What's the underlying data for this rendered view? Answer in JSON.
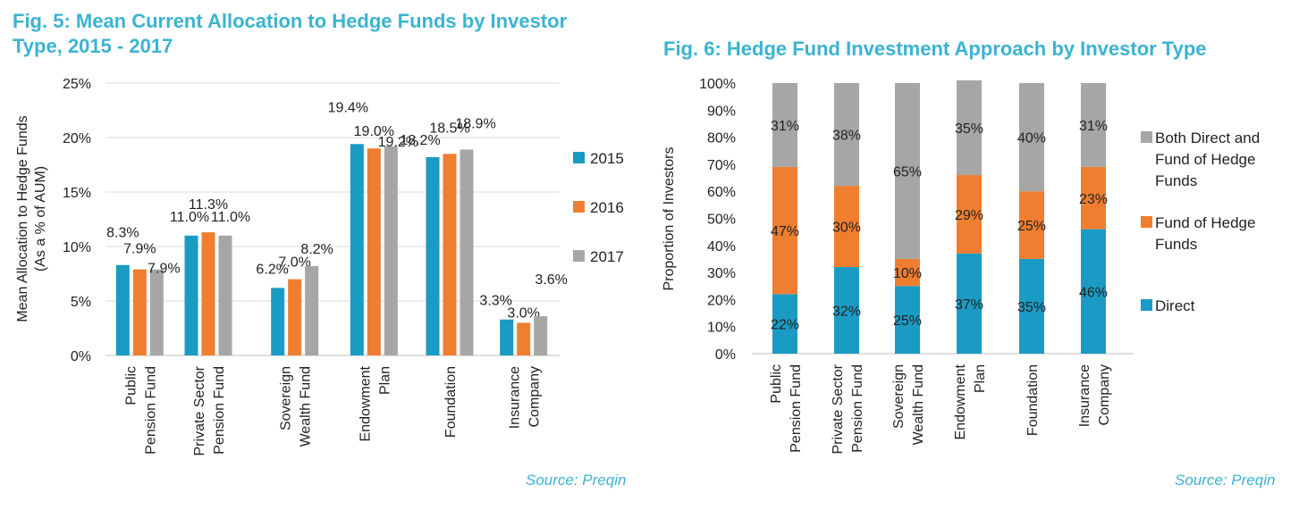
{
  "colors": {
    "title": "#3bb3d2",
    "source": "#3bb3d2",
    "c2015": "#1a9bc4",
    "c2016": "#ef7e30",
    "c2017": "#a6a6a6",
    "grid": "#d9d9d9",
    "axis": "#bfbfbf"
  },
  "fig5": {
    "title": "Fig. 5: Mean Current Allocation to Hedge Funds by Investor Type, 2015 - 2017",
    "source": "Source: Preqin"
  },
  "fig6": {
    "title": "Fig. 6: Hedge Fund Investment Approach by Investor Type",
    "source": "Source: Preqin"
  },
  "chart_data": [
    {
      "type": "bar",
      "title": "Fig. 5: Mean Current Allocation to Hedge Funds by Investor Type, 2015 - 2017",
      "ylabel": "Mean Allocation to Hedge Funds (As a % of AUM)",
      "ylabel_lines": [
        "Mean Allocation to Hedge Funds",
        "(As a % of AUM)"
      ],
      "xlabel": "",
      "ylim": [
        0,
        25
      ],
      "yticks": [
        0,
        5,
        10,
        15,
        20,
        25
      ],
      "ytick_labels": [
        "0%",
        "5%",
        "10%",
        "15%",
        "20%",
        "25%"
      ],
      "grid": true,
      "legend_position": "right",
      "categories": [
        [
          "Public",
          "Pension Fund"
        ],
        [
          "Private Sector",
          "Pension Fund"
        ],
        [
          "Sovereign",
          "Wealth Fund"
        ],
        [
          "Endowment",
          "Plan"
        ],
        [
          "Foundation"
        ],
        [
          "Insurance",
          "Company"
        ]
      ],
      "series": [
        {
          "name": "2015",
          "values": [
            8.3,
            11.0,
            6.2,
            19.4,
            18.2,
            3.3
          ],
          "labels": [
            "8.3%",
            "11.0%",
            "6.2%",
            "19.4%",
            "18.2%",
            "3.3%"
          ]
        },
        {
          "name": "2016",
          "values": [
            7.9,
            11.3,
            7.0,
            19.0,
            18.5,
            3.0
          ],
          "labels": [
            "7.9%",
            "11.3%",
            "7.0%",
            "19.0%",
            "18.5%",
            "3.0%"
          ]
        },
        {
          "name": "2017",
          "values": [
            7.9,
            11.0,
            8.2,
            19.2,
            18.9,
            3.6
          ],
          "labels": [
            "7.9%",
            "11.0%",
            "8.2%",
            "19.2%",
            "18.9%",
            "3.6%"
          ]
        }
      ]
    },
    {
      "type": "bar",
      "stacked": true,
      "title": "Fig. 6: Hedge Fund Investment Approach by Investor Type",
      "ylabel": "Proportion of Investors",
      "xlabel": "",
      "ylim": [
        0,
        100
      ],
      "yticks": [
        0,
        10,
        20,
        30,
        40,
        50,
        60,
        70,
        80,
        90,
        100
      ],
      "ytick_labels": [
        "0%",
        "10%",
        "20%",
        "30%",
        "40%",
        "50%",
        "60%",
        "70%",
        "80%",
        "90%",
        "100%"
      ],
      "grid": false,
      "legend_position": "right",
      "categories": [
        [
          "Public",
          "Pension Fund"
        ],
        [
          "Private Sector",
          "Pension Fund"
        ],
        [
          "Sovereign",
          "Wealth Fund"
        ],
        [
          "Endowment",
          "Plan"
        ],
        [
          "Foundation"
        ],
        [
          "Insurance",
          "Company"
        ]
      ],
      "series": [
        {
          "name": "Direct",
          "legend_lines": [
            "Direct"
          ],
          "values": [
            22,
            32,
            25,
            37,
            35,
            46
          ],
          "labels": [
            "22%",
            "32%",
            "25%",
            "37%",
            "35%",
            "46%"
          ]
        },
        {
          "name": "Fund of Hedge Funds",
          "legend_lines": [
            "Fund of Hedge",
            "Funds"
          ],
          "values": [
            47,
            30,
            10,
            29,
            25,
            23
          ],
          "labels": [
            "47%",
            "30%",
            "10%",
            "29%",
            "25%",
            "23%"
          ]
        },
        {
          "name": "Both Direct and Fund of Hedge Funds",
          "legend_lines": [
            "Both Direct and",
            "Fund of Hedge",
            "Funds"
          ],
          "values": [
            31,
            38,
            65,
            35,
            40,
            31
          ],
          "labels": [
            "31%",
            "38%",
            "65%",
            "35%",
            "40%",
            "31%"
          ]
        }
      ]
    }
  ]
}
